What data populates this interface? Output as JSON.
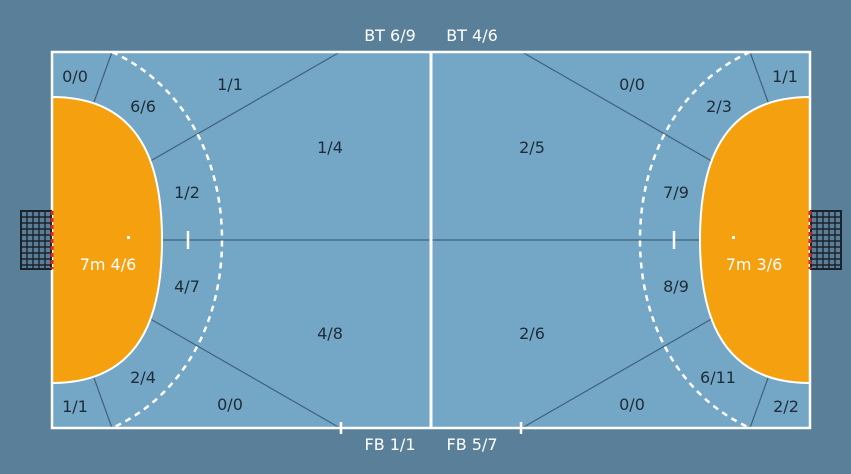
{
  "colors": {
    "background": "#5a7f99",
    "court": "#74a6c6",
    "goal_area": "#f5a00f",
    "lines": "#ffffff",
    "zone_lines": "#3e627c",
    "text_dark": "#1e2c38",
    "text_light": "#ffffff",
    "net": "#1b2229",
    "goal_post": "#d42a2a"
  },
  "top_labels": {
    "left": "BT 6/9",
    "right": "BT 4/6"
  },
  "bottom_labels": {
    "left": "FB 1/1",
    "right": "FB 5/7"
  },
  "left_half": {
    "seven_meter": "7m 4/6",
    "corner_top": "0/0",
    "wing_top": "6/6",
    "back_top": "1/1",
    "nine_meter_top": "1/2",
    "center_top": "1/4",
    "nine_meter_bottom": "4/7",
    "center_bottom": "4/8",
    "wing_bottom": "2/4",
    "corner_bottom": "1/1",
    "back_bottom": "0/0"
  },
  "right_half": {
    "seven_meter": "7m 3/6",
    "corner_top": "1/1",
    "wing_top": "2/3",
    "back_top": "0/0",
    "nine_meter_top": "7/9",
    "center_top": "2/5",
    "nine_meter_bottom": "8/9",
    "center_bottom": "2/6",
    "wing_bottom": "6/11",
    "corner_bottom": "2/2",
    "back_bottom": "0/0"
  },
  "icons": {
    "left_goal": "goal-net-icon",
    "right_goal": "goal-net-icon"
  }
}
